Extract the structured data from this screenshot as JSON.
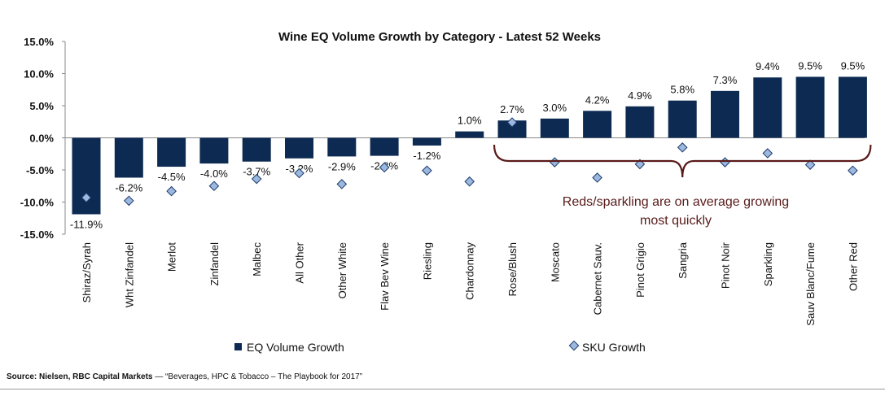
{
  "chart_data": {
    "type": "bar",
    "title": "Wine EQ Volume Growth by Category - Latest 52 Weeks",
    "categories": [
      "Shiraz/Syrah",
      "Wht Zinfandel",
      "Merlot",
      "Zinfandel",
      "Malbec",
      "All Other",
      "Other White",
      "Flav Bev Wine",
      "Riesling",
      "Chardonnay",
      "Rose/Blush",
      "Moscato",
      "Cabernet Sauv.",
      "Pinot Grigio",
      "Sangria",
      "Pinot Noir",
      "Sparkling",
      "Sauv Blanc/Fume",
      "Other Red"
    ],
    "series": [
      {
        "name": "EQ Volume Growth",
        "kind": "bar",
        "color": "#0d2b52",
        "values": [
          -11.9,
          -6.2,
          -4.5,
          -4.0,
          -3.7,
          -3.2,
          -2.9,
          -2.8,
          -1.2,
          1.0,
          2.7,
          3.0,
          4.2,
          4.9,
          5.8,
          7.3,
          9.4,
          9.5,
          9.5
        ],
        "labels": [
          "-11.9%",
          "-6.2%",
          "-4.5%",
          "-4.0%",
          "-3.7%",
          "-3.2%",
          "-2.9%",
          "-2.8%",
          "-1.2%",
          "1.0%",
          "2.7%",
          "3.0%",
          "4.2%",
          "4.9%",
          "5.8%",
          "7.3%",
          "9.4%",
          "9.5%",
          "9.5%"
        ]
      },
      {
        "name": "SKU Growth",
        "kind": "marker",
        "color": "#9db8df",
        "values": [
          -9.3,
          -9.8,
          -8.3,
          -7.5,
          -6.4,
          -5.5,
          -7.2,
          -4.6,
          -5.1,
          -6.8,
          2.4,
          -3.8,
          -6.2,
          -4.1,
          -1.5,
          -3.8,
          -2.4,
          -4.2,
          -5.1
        ]
      }
    ],
    "yticks": [
      "15.0%",
      "10.0%",
      "5.0%",
      "0.0%",
      "-5.0%",
      "-10.0%",
      "-15.0%"
    ],
    "ylim": [
      -15,
      15
    ],
    "annotation": {
      "line1": "Reds/sparkling are on average growing",
      "line2": "most quickly",
      "from_category": "Rose/Blush",
      "to_category": "Other Red",
      "color": "#5a1a1a"
    },
    "legend": {
      "position": "bottom"
    }
  },
  "source": {
    "label": "Source: Nielsen, RBC Capital Markets",
    "text": " — “Beverages, HPC & Tobacco – The Playbook for 2017”"
  }
}
